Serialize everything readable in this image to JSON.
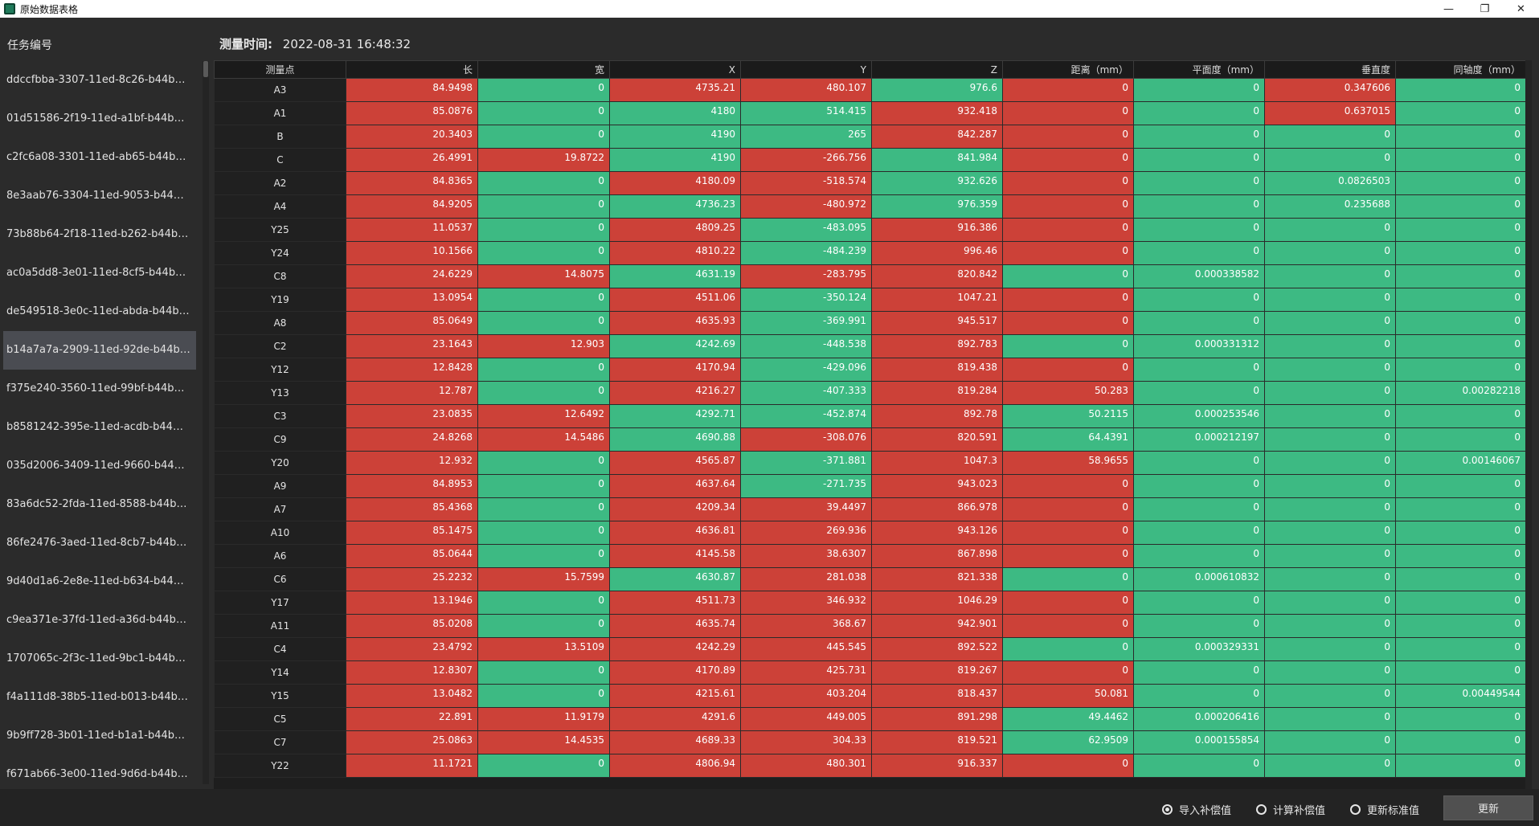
{
  "window": {
    "title": "原始数据表格"
  },
  "sidebar": {
    "header": "任务编号",
    "selected_index": 7,
    "items": [
      "ddccfbba-3307-11ed-8c26-b44bd65e...",
      "01d51586-2f19-11ed-a1bf-b44bd65ee...",
      "c2fc6a08-3301-11ed-ab65-b44bd65ee...",
      "8e3aab76-3304-11ed-9053-b44bd65e...",
      "73b88b64-2f18-11ed-b262-b44bd65e...",
      "ac0a5dd8-3e01-11ed-8cf5-b44bd65ee...",
      "de549518-3e0c-11ed-abda-b44bd65e...",
      "b14a7a7a-2909-11ed-92de-b44bd65e...",
      "f375e240-3560-11ed-99bf-b44bd65ee...",
      "b8581242-395e-11ed-acdb-b44bd65e...",
      "035d2006-3409-11ed-9660-b44bd65e...",
      "83a6dc52-2fda-11ed-8588-b44bd65e...",
      "86fe2476-3aed-11ed-8cb7-b44bd65e...",
      "9d40d1a6-2e8e-11ed-b634-b44bd65e...",
      "c9ea371e-37fd-11ed-a36d-b44bd65e...",
      "1707065c-2f3c-11ed-9bc1-b44bd65e...",
      "f4a111d8-38b5-11ed-b013-b44bd65e...",
      "9b9ff728-3b01-11ed-b1a1-b44bd65e...",
      "f671ab66-3e00-11ed-9d6d-b44bd65e..."
    ]
  },
  "measure": {
    "label": "测量时间:",
    "value": "2022-08-31 16:48:32"
  },
  "colors": {
    "red": "#cc4138",
    "green": "#3dba83"
  },
  "table": {
    "headers": [
      "测量点",
      "长",
      "宽",
      "X",
      "Y",
      "Z",
      "距离（mm）",
      "平面度（mm）",
      "垂直度",
      "同轴度（mm）"
    ],
    "rows": [
      {
        "p": "A3",
        "v": [
          "84.9498",
          "0",
          "4735.21",
          "480.107",
          "976.6",
          "0",
          "0",
          "0.347606",
          "0"
        ],
        "c": "rgrrgrgrg"
      },
      {
        "p": "A1",
        "v": [
          "85.0876",
          "0",
          "4180",
          "514.415",
          "932.418",
          "0",
          "0",
          "0.637015",
          "0"
        ],
        "c": "rgggrrgrg"
      },
      {
        "p": "B",
        "v": [
          "20.3403",
          "0",
          "4190",
          "265",
          "842.287",
          "0",
          "0",
          "0",
          "0"
        ],
        "c": "rgggrrggg"
      },
      {
        "p": "C",
        "v": [
          "26.4991",
          "19.8722",
          "4190",
          "-266.756",
          "841.984",
          "0",
          "0",
          "0",
          "0"
        ],
        "c": "rrgrgrggg"
      },
      {
        "p": "A2",
        "v": [
          "84.8365",
          "0",
          "4180.09",
          "-518.574",
          "932.626",
          "0",
          "0",
          "0.0826503",
          "0"
        ],
        "c": "rgrrgrggg"
      },
      {
        "p": "A4",
        "v": [
          "84.9205",
          "0",
          "4736.23",
          "-480.972",
          "976.359",
          "0",
          "0",
          "0.235688",
          "0"
        ],
        "c": "rggrgrggg"
      },
      {
        "p": "Y25",
        "v": [
          "11.0537",
          "0",
          "4809.25",
          "-483.095",
          "916.386",
          "0",
          "0",
          "0",
          "0"
        ],
        "c": "rgrgrrggg"
      },
      {
        "p": "Y24",
        "v": [
          "10.1566",
          "0",
          "4810.22",
          "-484.239",
          "996.46",
          "0",
          "0",
          "0",
          "0"
        ],
        "c": "rgrgrrggg"
      },
      {
        "p": "C8",
        "v": [
          "24.6229",
          "14.8075",
          "4631.19",
          "-283.795",
          "820.842",
          "0",
          "0.000338582",
          "0",
          "0"
        ],
        "c": "rrgrrgggg"
      },
      {
        "p": "Y19",
        "v": [
          "13.0954",
          "0",
          "4511.06",
          "-350.124",
          "1047.21",
          "0",
          "0",
          "0",
          "0"
        ],
        "c": "rgrgrrggg"
      },
      {
        "p": "A8",
        "v": [
          "85.0649",
          "0",
          "4635.93",
          "-369.991",
          "945.517",
          "0",
          "0",
          "0",
          "0"
        ],
        "c": "rgrgrrggg"
      },
      {
        "p": "C2",
        "v": [
          "23.1643",
          "12.903",
          "4242.69",
          "-448.538",
          "892.783",
          "0",
          "0.000331312",
          "0",
          "0"
        ],
        "c": "rrggrgggg"
      },
      {
        "p": "Y12",
        "v": [
          "12.8428",
          "0",
          "4170.94",
          "-429.096",
          "819.438",
          "0",
          "0",
          "0",
          "0"
        ],
        "c": "rgrgrrggg"
      },
      {
        "p": "Y13",
        "v": [
          "12.787",
          "0",
          "4216.27",
          "-407.333",
          "819.284",
          "50.283",
          "0",
          "0",
          "0.00282218"
        ],
        "c": "rgrgrrggg"
      },
      {
        "p": "C3",
        "v": [
          "23.0835",
          "12.6492",
          "4292.71",
          "-452.874",
          "892.78",
          "50.2115",
          "0.000253546",
          "0",
          "0"
        ],
        "c": "rrggrgggg"
      },
      {
        "p": "C9",
        "v": [
          "24.8268",
          "14.5486",
          "4690.88",
          "-308.076",
          "820.591",
          "64.4391",
          "0.000212197",
          "0",
          "0"
        ],
        "c": "rrgrrgggg"
      },
      {
        "p": "Y20",
        "v": [
          "12.932",
          "0",
          "4565.87",
          "-371.881",
          "1047.3",
          "58.9655",
          "0",
          "0",
          "0.00146067"
        ],
        "c": "rgrgrrggg"
      },
      {
        "p": "A9",
        "v": [
          "84.8953",
          "0",
          "4637.64",
          "-271.735",
          "943.023",
          "0",
          "0",
          "0",
          "0"
        ],
        "c": "rgrgrrggg"
      },
      {
        "p": "A7",
        "v": [
          "85.4368",
          "0",
          "4209.34",
          "39.4497",
          "866.978",
          "0",
          "0",
          "0",
          "0"
        ],
        "c": "rgrrrrggg"
      },
      {
        "p": "A10",
        "v": [
          "85.1475",
          "0",
          "4636.81",
          "269.936",
          "943.126",
          "0",
          "0",
          "0",
          "0"
        ],
        "c": "rgrrrrggg"
      },
      {
        "p": "A6",
        "v": [
          "85.0644",
          "0",
          "4145.58",
          "38.6307",
          "867.898",
          "0",
          "0",
          "0",
          "0"
        ],
        "c": "rgrrrrggg"
      },
      {
        "p": "C6",
        "v": [
          "25.2232",
          "15.7599",
          "4630.87",
          "281.038",
          "821.338",
          "0",
          "0.000610832",
          "0",
          "0"
        ],
        "c": "rrgrrgggg"
      },
      {
        "p": "Y17",
        "v": [
          "13.1946",
          "0",
          "4511.73",
          "346.932",
          "1046.29",
          "0",
          "0",
          "0",
          "0"
        ],
        "c": "rgrrrrggg"
      },
      {
        "p": "A11",
        "v": [
          "85.0208",
          "0",
          "4635.74",
          "368.67",
          "942.901",
          "0",
          "0",
          "0",
          "0"
        ],
        "c": "rgrrrrggg"
      },
      {
        "p": "C4",
        "v": [
          "23.4792",
          "13.5109",
          "4242.29",
          "445.545",
          "892.522",
          "0",
          "0.000329331",
          "0",
          "0"
        ],
        "c": "rrrrrgggg"
      },
      {
        "p": "Y14",
        "v": [
          "12.8307",
          "0",
          "4170.89",
          "425.731",
          "819.267",
          "0",
          "0",
          "0",
          "0"
        ],
        "c": "rgrrrrggg"
      },
      {
        "p": "Y15",
        "v": [
          "13.0482",
          "0",
          "4215.61",
          "403.204",
          "818.437",
          "50.081",
          "0",
          "0",
          "0.00449544"
        ],
        "c": "rgrrrrggg"
      },
      {
        "p": "C5",
        "v": [
          "22.891",
          "11.9179",
          "4291.6",
          "449.005",
          "891.298",
          "49.4462",
          "0.000206416",
          "0",
          "0"
        ],
        "c": "rrrrrgggg"
      },
      {
        "p": "C7",
        "v": [
          "25.0863",
          "14.4535",
          "4689.33",
          "304.33",
          "819.521",
          "62.9509",
          "0.000155854",
          "0",
          "0"
        ],
        "c": "rrrrrgggg"
      },
      {
        "p": "Y22",
        "v": [
          "11.1721",
          "0",
          "4806.94",
          "480.301",
          "916.337",
          "0",
          "0",
          "0",
          "0"
        ],
        "c": "rgrrrrggg"
      }
    ]
  },
  "options": {
    "items": [
      "导入补偿值",
      "计算补偿值",
      "更新标准值"
    ],
    "selected": 0
  },
  "update_button": "更新",
  "window_controls": {
    "minimize": "—",
    "maximize": "❐",
    "close": "✕"
  }
}
